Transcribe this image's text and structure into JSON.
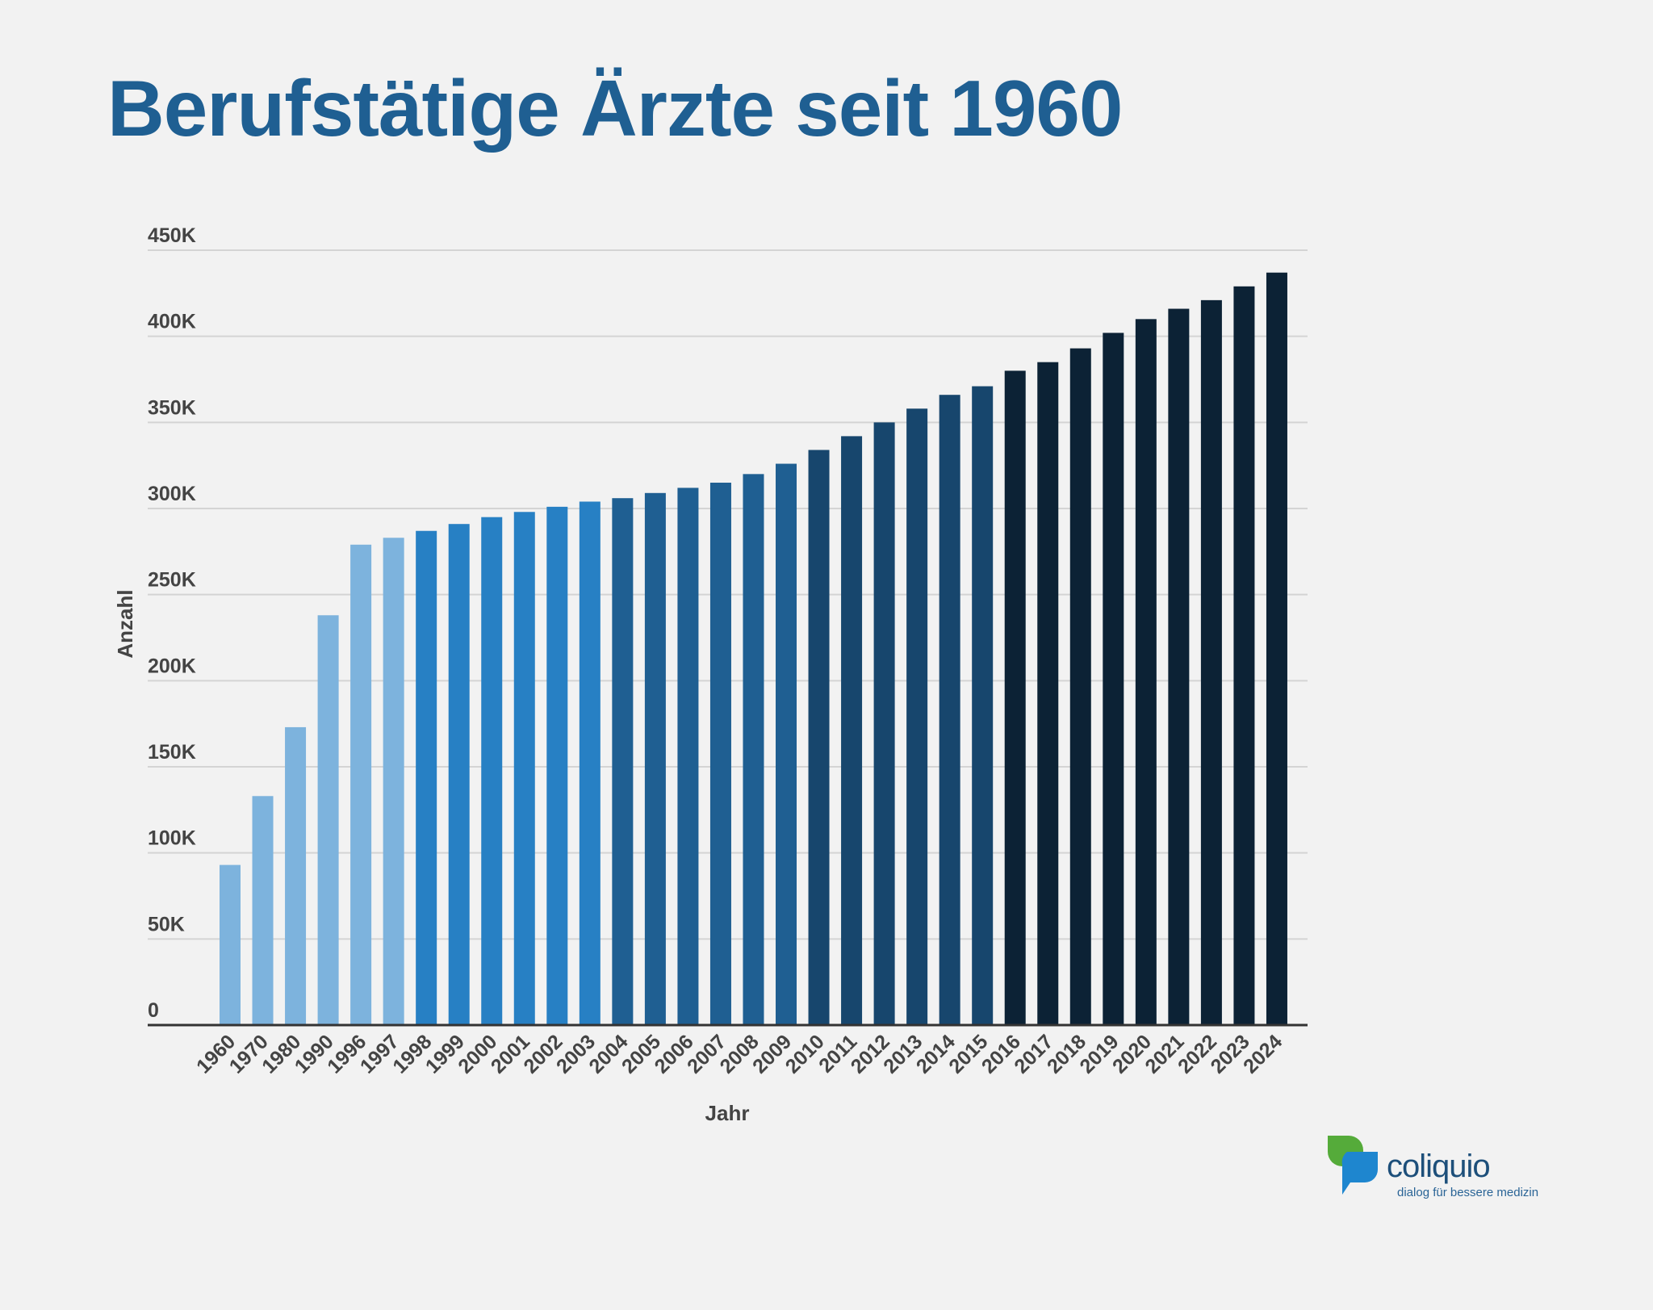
{
  "chart_data": {
    "type": "bar",
    "title": "Berufstätige Ärzte seit 1960",
    "xlabel": "Jahr",
    "ylabel": "Anzahl",
    "ylim": [
      0,
      450000
    ],
    "yticks": [
      "0",
      "50K",
      "100K",
      "150K",
      "200K",
      "250K",
      "300K",
      "350K",
      "400K",
      "450K"
    ],
    "grid": true,
    "categories": [
      "1960",
      "1970",
      "1980",
      "1990",
      "1996",
      "1997",
      "1998",
      "1999",
      "2000",
      "2001",
      "2002",
      "2003",
      "2004",
      "2005",
      "2006",
      "2007",
      "2008",
      "2009",
      "2010",
      "2011",
      "2012",
      "2013",
      "2014",
      "2015",
      "2016",
      "2017",
      "2018",
      "2019",
      "2020",
      "2021",
      "2022",
      "2023",
      "2024"
    ],
    "values": [
      93000,
      133000,
      173000,
      238000,
      279000,
      283000,
      287000,
      291000,
      295000,
      298000,
      301000,
      304000,
      306000,
      309000,
      312000,
      315000,
      320000,
      326000,
      334000,
      342000,
      350000,
      358000,
      366000,
      371000,
      380000,
      385000,
      393000,
      402000,
      410000,
      416000,
      421000,
      429000,
      437000
    ],
    "colors": [
      "#7db3dd",
      "#7db3dd",
      "#7db3dd",
      "#7db3dd",
      "#7db3dd",
      "#7db3dd",
      "#2780c4",
      "#2780c4",
      "#2780c4",
      "#2780c4",
      "#2780c4",
      "#2780c4",
      "#1f5f92",
      "#1f5f92",
      "#1f5f92",
      "#1f5f92",
      "#1f5f92",
      "#1f5f92",
      "#17466d",
      "#17466d",
      "#17466d",
      "#17466d",
      "#17466d",
      "#17466d",
      "#0c2235",
      "#0c2235",
      "#0c2235",
      "#0c2235",
      "#0c2235",
      "#0c2235",
      "#0c2235",
      "#0c2235",
      "#0c2235"
    ]
  },
  "logo": {
    "name": "coliquio",
    "tagline": "dialog für bessere medizin"
  }
}
